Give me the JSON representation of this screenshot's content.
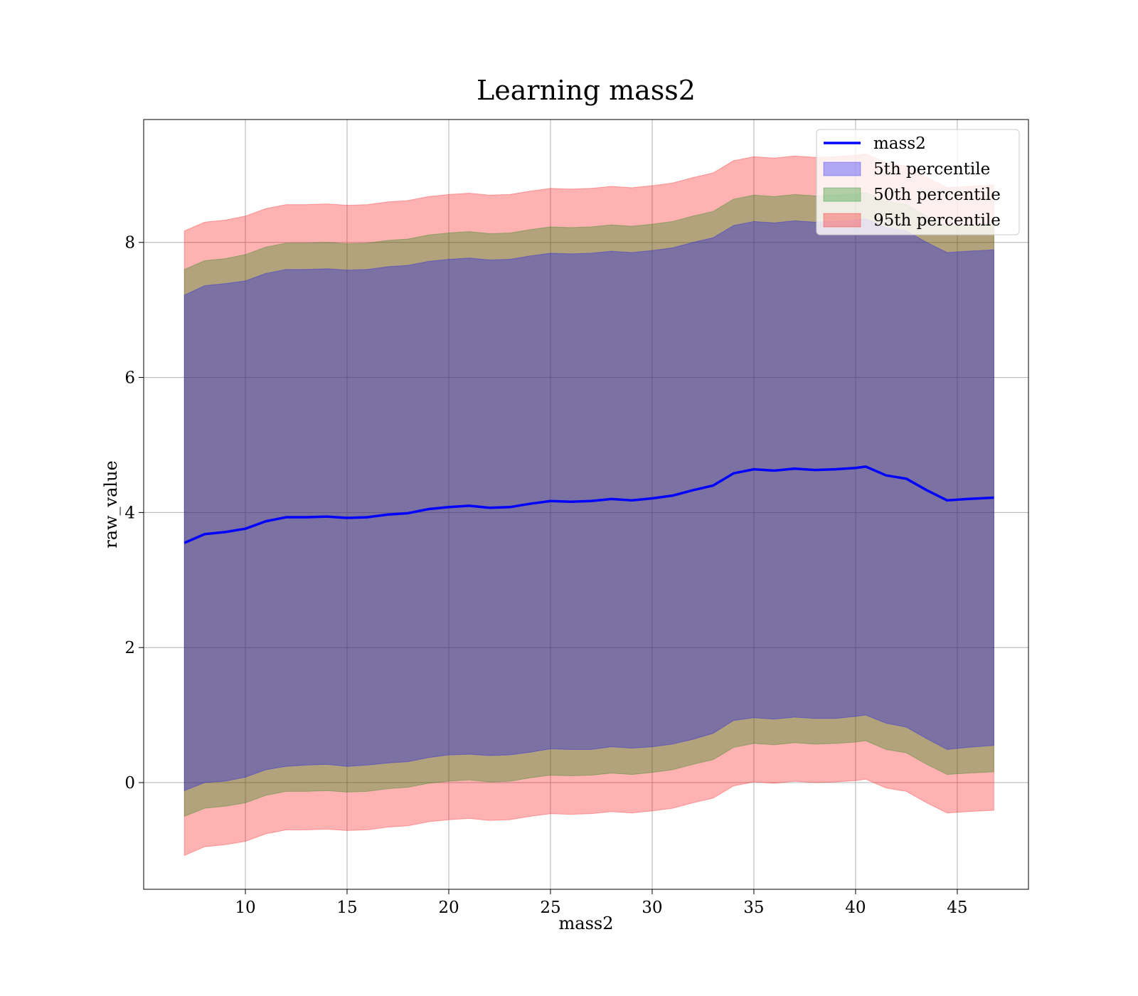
{
  "chart_data": {
    "type": "area",
    "title": "Learning mass2",
    "xlabel": "mass2",
    "ylabel": "raw_value",
    "xlim": [
      5,
      48.5
    ],
    "ylim": [
      -1.58,
      9.82
    ],
    "xticks": [
      10,
      15,
      20,
      25,
      30,
      35,
      40,
      45
    ],
    "yticks": [
      0,
      2,
      4,
      6,
      8
    ],
    "grid": true,
    "legend_position": "top-right",
    "x": [
      7,
      8,
      9,
      10,
      11,
      12,
      13,
      14,
      15,
      16,
      17,
      18,
      19,
      20,
      21,
      22,
      23,
      24,
      25,
      26,
      27,
      28,
      29,
      30,
      31,
      32,
      33,
      34,
      35,
      36,
      37,
      38,
      39,
      40,
      40.5,
      41.5,
      42.5,
      43.5,
      44.5,
      45.5,
      46.8
    ],
    "series": [
      {
        "name": "mass2",
        "kind": "line",
        "color": "#0000ff",
        "values": [
          3.55,
          3.68,
          3.71,
          3.76,
          3.87,
          3.93,
          3.93,
          3.94,
          3.92,
          3.93,
          3.97,
          3.99,
          4.05,
          4.08,
          4.1,
          4.07,
          4.08,
          4.13,
          4.17,
          4.16,
          4.17,
          4.2,
          4.18,
          4.21,
          4.25,
          4.33,
          4.4,
          4.58,
          4.64,
          4.62,
          4.65,
          4.63,
          4.64,
          4.66,
          4.68,
          4.55,
          4.5,
          4.33,
          4.18,
          4.2,
          4.22
        ]
      },
      {
        "name": "5th percentile",
        "kind": "band",
        "color": "#0000ff",
        "lower": [
          -0.12,
          0.0,
          0.02,
          0.08,
          0.19,
          0.24,
          0.26,
          0.27,
          0.24,
          0.26,
          0.29,
          0.31,
          0.37,
          0.41,
          0.42,
          0.4,
          0.41,
          0.45,
          0.5,
          0.49,
          0.49,
          0.53,
          0.51,
          0.53,
          0.57,
          0.64,
          0.73,
          0.92,
          0.96,
          0.94,
          0.97,
          0.95,
          0.95,
          0.98,
          1.0,
          0.88,
          0.82,
          0.65,
          0.49,
          0.52,
          0.55
        ],
        "upper": [
          7.22,
          7.36,
          7.39,
          7.43,
          7.54,
          7.6,
          7.6,
          7.61,
          7.59,
          7.6,
          7.64,
          7.66,
          7.72,
          7.75,
          7.77,
          7.74,
          7.75,
          7.8,
          7.84,
          7.83,
          7.84,
          7.87,
          7.85,
          7.88,
          7.92,
          8.0,
          8.07,
          8.25,
          8.31,
          8.29,
          8.32,
          8.3,
          8.31,
          8.33,
          8.35,
          8.22,
          8.17,
          8.0,
          7.85,
          7.87,
          7.89
        ]
      },
      {
        "name": "50th percentile",
        "kind": "band",
        "color": "#008000",
        "lower": [
          -0.5,
          -0.38,
          -0.35,
          -0.3,
          -0.19,
          -0.13,
          -0.13,
          -0.12,
          -0.14,
          -0.13,
          -0.09,
          -0.07,
          -0.01,
          0.02,
          0.04,
          0.01,
          0.02,
          0.07,
          0.11,
          0.1,
          0.11,
          0.14,
          0.12,
          0.15,
          0.19,
          0.27,
          0.34,
          0.52,
          0.58,
          0.56,
          0.59,
          0.57,
          0.58,
          0.6,
          0.62,
          0.49,
          0.44,
          0.27,
          0.12,
          0.14,
          0.16
        ],
        "upper": [
          7.6,
          7.73,
          7.76,
          7.82,
          7.93,
          7.99,
          7.99,
          8.0,
          7.98,
          7.99,
          8.03,
          8.05,
          8.11,
          8.14,
          8.16,
          8.13,
          8.14,
          8.19,
          8.23,
          8.22,
          8.23,
          8.26,
          8.24,
          8.27,
          8.31,
          8.39,
          8.46,
          8.64,
          8.7,
          8.68,
          8.71,
          8.69,
          8.7,
          8.72,
          8.74,
          8.61,
          8.56,
          8.39,
          8.24,
          8.26,
          8.28
        ]
      },
      {
        "name": "95th percentile",
        "kind": "band",
        "color": "#ff0000",
        "lower": [
          -1.08,
          -0.95,
          -0.92,
          -0.87,
          -0.76,
          -0.7,
          -0.7,
          -0.69,
          -0.71,
          -0.7,
          -0.66,
          -0.64,
          -0.58,
          -0.55,
          -0.53,
          -0.56,
          -0.55,
          -0.5,
          -0.46,
          -0.47,
          -0.46,
          -0.43,
          -0.45,
          -0.42,
          -0.38,
          -0.3,
          -0.23,
          -0.05,
          0.01,
          -0.01,
          0.02,
          0.0,
          0.01,
          0.03,
          0.05,
          -0.08,
          -0.13,
          -0.3,
          -0.45,
          -0.43,
          -0.41
        ],
        "upper": [
          8.17,
          8.3,
          8.33,
          8.39,
          8.5,
          8.56,
          8.56,
          8.57,
          8.55,
          8.56,
          8.6,
          8.62,
          8.68,
          8.71,
          8.73,
          8.7,
          8.71,
          8.76,
          8.8,
          8.79,
          8.8,
          8.83,
          8.81,
          8.84,
          8.88,
          8.96,
          9.03,
          9.21,
          9.27,
          9.25,
          9.28,
          9.26,
          9.27,
          9.29,
          9.31,
          9.18,
          9.13,
          8.96,
          8.81,
          8.83,
          8.85
        ]
      }
    ]
  }
}
